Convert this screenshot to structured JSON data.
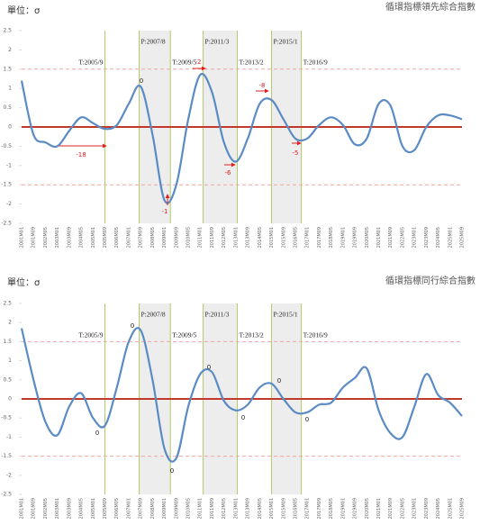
{
  "chart_data": [
    {
      "type": "line",
      "unit_label": "單位：σ",
      "title": "循環指標領先綜合指數",
      "categories": [
        "2001M01",
        "2001M09",
        "2002M05",
        "2003M01",
        "2003M09",
        "2004M05",
        "2005M01",
        "2005M09",
        "2006M05",
        "2007M01",
        "2007M09",
        "2008M05",
        "2009M01",
        "2009M09",
        "2010M05",
        "2011M01",
        "2011M09",
        "2012M05",
        "2013M01",
        "2013M09",
        "2014M05",
        "2015M01",
        "2015M09",
        "2016M05",
        "2017M01",
        "2017M09",
        "2018M05",
        "2019M01",
        "2019M09",
        "2020M05",
        "2021M01",
        "2021M09",
        "2022M05",
        "2023M01",
        "2023M09",
        "2024M05",
        "2025M01",
        "2025M09"
      ],
      "series": [
        {
          "name": "循環指標領先綜合指數",
          "color": "#5b8bc5",
          "values": [
            1.2,
            -0.2,
            -0.4,
            -0.5,
            -0.1,
            0.25,
            0.1,
            -0.05,
            0.05,
            0.6,
            1.05,
            -0.2,
            -1.9,
            -1.5,
            0.2,
            1.35,
            0.9,
            -0.4,
            -0.9,
            -0.3,
            0.6,
            0.7,
            0.2,
            -0.3,
            -0.3,
            0.05,
            0.25,
            0.05,
            -0.45,
            -0.3,
            0.6,
            0.55,
            -0.5,
            -0.6,
            0.0,
            0.3,
            0.3,
            0.2
          ]
        }
      ],
      "ylim": [
        -2.5,
        2.5
      ],
      "yticks": [
        2.5,
        2,
        1.5,
        1,
        0.5,
        0,
        -0.5,
        -1,
        -1.5,
        -2,
        -2.5
      ],
      "reference_lines": [
        1.5,
        -1.5
      ],
      "reference_color": "#f4a6a6",
      "zero_line_color": "#c0392b",
      "turning_points": [
        {
          "label": "T:2005/9",
          "date": "2005M09"
        },
        {
          "label": "P:2007/8",
          "date": "2007M08"
        },
        {
          "label": "T:2009/5",
          "date": "2009M05"
        },
        {
          "label": "P:2011/3",
          "date": "2011M03"
        },
        {
          "label": "T:2013/2",
          "date": "2013M02"
        },
        {
          "label": "P:2015/1",
          "date": "2015M01"
        },
        {
          "label": "T:2016/9",
          "date": "2016M09"
        }
      ],
      "turning_color": "#b5c96a",
      "shade_color": "#ededed",
      "annotations": [
        "-18",
        "0",
        "-1",
        "-2",
        "-6",
        "-8",
        "-5"
      ]
    },
    {
      "type": "line",
      "unit_label": "單位：σ",
      "title": "循環指標同行綜合指數",
      "categories": [
        "2001M01",
        "2001M09",
        "2002M05",
        "2003M01",
        "2003M09",
        "2004M05",
        "2005M01",
        "2005M09",
        "2006M05",
        "2007M01",
        "2007M09",
        "2008M05",
        "2009M01",
        "2009M09",
        "2010M05",
        "2011M01",
        "2011M09",
        "2012M05",
        "2013M01",
        "2013M09",
        "2014M05",
        "2015M01",
        "2015M09",
        "2016M05",
        "2017M01",
        "2017M09",
        "2018M05",
        "2019M01",
        "2019M09",
        "2020M05",
        "2021M01",
        "2021M09",
        "2022M05",
        "2023M01",
        "2023M09",
        "2024M05",
        "2025M01",
        "2025M09"
      ],
      "series": [
        {
          "name": "循環指標同行綜合指數",
          "color": "#5b8bc5",
          "values": [
            1.85,
            0.5,
            -0.6,
            -0.95,
            -0.2,
            0.15,
            -0.5,
            -0.7,
            0.3,
            1.5,
            1.8,
            0.5,
            -1.3,
            -1.55,
            -0.2,
            0.65,
            0.7,
            -0.05,
            -0.3,
            -0.15,
            0.3,
            0.4,
            0.0,
            -0.35,
            -0.35,
            -0.15,
            -0.1,
            0.3,
            0.55,
            0.8,
            -0.3,
            -0.9,
            -1.0,
            -0.2,
            0.65,
            0.1,
            -0.1,
            -0.45
          ]
        }
      ],
      "ylim": [
        -2.5,
        2.5
      ],
      "yticks": [
        2.5,
        2,
        1.5,
        1,
        0.5,
        0,
        -0.5,
        -1,
        -1.5,
        -2,
        -2.5
      ],
      "reference_lines": [
        1.5,
        -1.5
      ],
      "reference_color": "#f4a6a6",
      "zero_line_color": "#c0392b",
      "turning_points": [
        {
          "label": "T:2005/9",
          "date": "2005M09"
        },
        {
          "label": "P:2007/8",
          "date": "2007M08"
        },
        {
          "label": "T:2009/5",
          "date": "2009M05"
        },
        {
          "label": "P:2011/3",
          "date": "2011M03"
        },
        {
          "label": "T:2013/2",
          "date": "2013M02"
        },
        {
          "label": "P:2015/1",
          "date": "2015M01"
        },
        {
          "label": "T:2016/9",
          "date": "2016M09"
        }
      ],
      "turning_color": "#b5c96a",
      "shade_color": "#ededed",
      "annotations": [
        "0",
        "0",
        "0",
        "0",
        "0",
        "0",
        "0"
      ]
    }
  ]
}
